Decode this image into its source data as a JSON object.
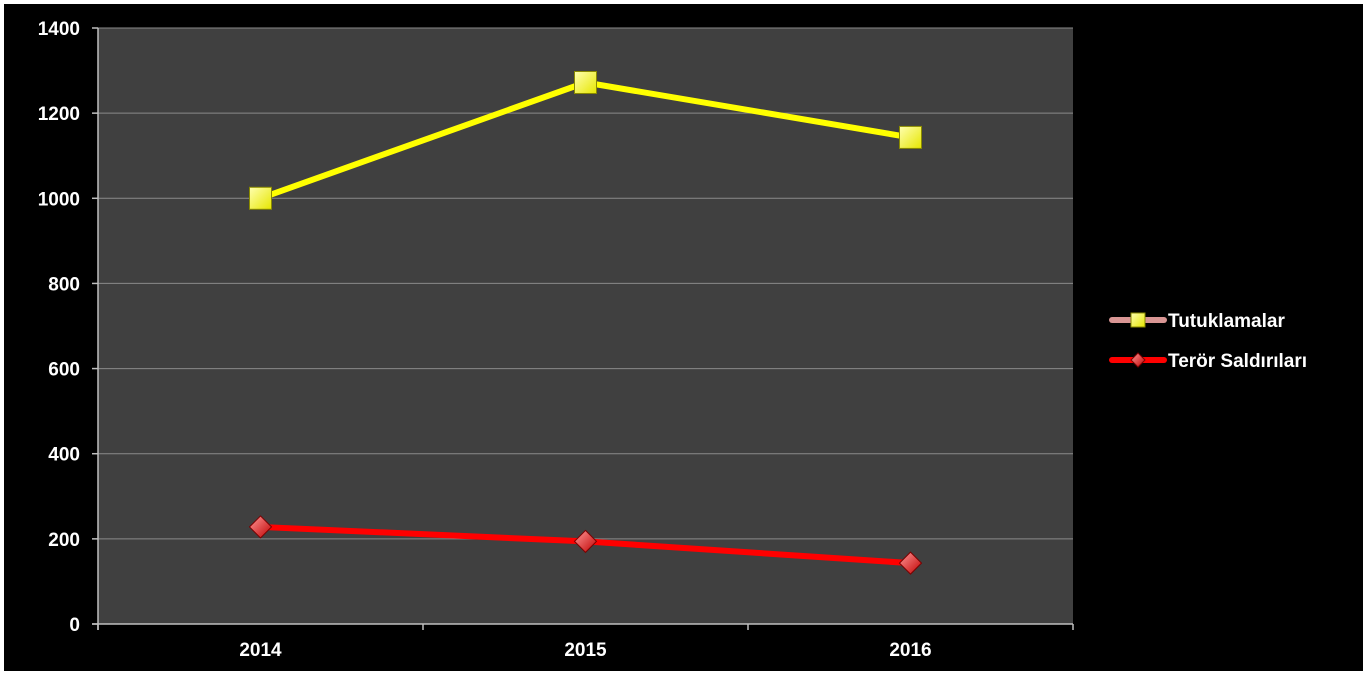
{
  "chart_data": {
    "type": "line",
    "categories": [
      "2014",
      "2015",
      "2016"
    ],
    "series": [
      {
        "name": "Tutuklamalar",
        "values": [
          1000,
          1272,
          1143
        ],
        "color": "#ffff00",
        "marker": "square"
      },
      {
        "name": "Terör Saldırıları",
        "values": [
          228,
          194,
          143
        ],
        "color": "#ff0000",
        "marker": "diamond"
      }
    ],
    "title": "",
    "xlabel": "",
    "ylabel": "",
    "ylim": [
      0,
      1400
    ],
    "yticks": [
      "0",
      "200",
      "400",
      "600",
      "800",
      "1000",
      "1200",
      "1400"
    ],
    "grid": true,
    "legend_position": "right",
    "colors": {
      "background": "#000000",
      "plot_area": "#404040",
      "gridline": "#8a8a8a",
      "axis": "#bfbfbf"
    }
  }
}
